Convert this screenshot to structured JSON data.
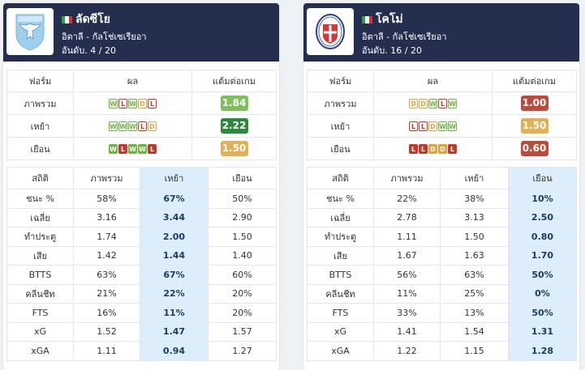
{
  "colors": {
    "header_bg": "#242f4f",
    "highlight_bg": "#dceefb",
    "win": "#6cb33f",
    "draw": "#d9a441",
    "loss": "#c0392b",
    "ppg_green_light": "#7fbf5a",
    "ppg_green_dark": "#2c8a3c",
    "ppg_yellow": "#e3b053",
    "ppg_red": "#bd4b3b"
  },
  "teams": [
    {
      "name": "ลัดซีโย",
      "league": "อิตาลี - กัลโช่เซเรียอา",
      "rank": "อันดับ. 4 / 20",
      "logo_icon": "lazio-eagle-crest-icon",
      "flag_icon": "italy-flag-icon",
      "form_headers": [
        "ฟอร์ม",
        "ผล",
        "แต้มต่อเกม"
      ],
      "form_rows": [
        {
          "label": "ภาพรวม",
          "results": [
            "W",
            "L",
            "W",
            "D",
            "L"
          ],
          "ppg": "1.84",
          "ppg_color": "#7fbf5a"
        },
        {
          "label": "เหย้า",
          "results": [
            "W",
            "W",
            "W",
            "L",
            "D"
          ],
          "ppg": "2.22",
          "ppg_color": "#2c8a3c"
        },
        {
          "label": "เยือน",
          "results": [
            "W",
            "L",
            "W",
            "W",
            "L"
          ],
          "ppg": "1.50",
          "ppg_color": "#e3b053"
        }
      ],
      "stats_headers": [
        "สถิติ",
        "ภาพรวม",
        "เหย้า",
        "เยือน"
      ],
      "highlight_col": 2,
      "stats_rows": [
        {
          "label": "ชนะ %",
          "overall": "58%",
          "home": "67%",
          "away": "50%"
        },
        {
          "label": "เฉลี่ย",
          "overall": "3.16",
          "home": "3.44",
          "away": "2.90"
        },
        {
          "label": "ทำประตู",
          "overall": "1.74",
          "home": "2.00",
          "away": "1.50"
        },
        {
          "label": "เสีย",
          "overall": "1.42",
          "home": "1.44",
          "away": "1.40"
        },
        {
          "label": "BTTS",
          "overall": "63%",
          "home": "67%",
          "away": "60%"
        },
        {
          "label": "คลีนชีท",
          "overall": "21%",
          "home": "22%",
          "away": "20%"
        },
        {
          "label": "FTS",
          "overall": "16%",
          "home": "11%",
          "away": "20%"
        },
        {
          "label": "xG",
          "overall": "1.52",
          "home": "1.47",
          "away": "1.57"
        },
        {
          "label": "xGA",
          "overall": "1.11",
          "home": "0.94",
          "away": "1.27"
        }
      ]
    },
    {
      "name": "โคโม่",
      "league": "อิตาลี - กัลโช่เซเรียอา",
      "rank": "อันดับ. 16 / 20",
      "logo_icon": "como-1907-crest-icon",
      "flag_icon": "italy-flag-icon",
      "form_headers": [
        "ฟอร์ม",
        "ผล",
        "แต้มต่อเกม"
      ],
      "form_rows": [
        {
          "label": "ภาพรวม",
          "results": [
            "D",
            "D",
            "W",
            "L",
            "W"
          ],
          "ppg": "1.00",
          "ppg_color": "#bd4b3b"
        },
        {
          "label": "เหย้า",
          "results": [
            "L",
            "L",
            "D",
            "W",
            "W"
          ],
          "ppg": "1.50",
          "ppg_color": "#e3b053"
        },
        {
          "label": "เยือน",
          "results": [
            "L",
            "L",
            "D",
            "D",
            "L"
          ],
          "ppg": "0.60",
          "ppg_color": "#bd4b3b"
        }
      ],
      "stats_headers": [
        "สถิติ",
        "ภาพรวม",
        "เหย้า",
        "เยือน"
      ],
      "highlight_col": 3,
      "stats_rows": [
        {
          "label": "ชนะ %",
          "overall": "22%",
          "home": "38%",
          "away": "10%"
        },
        {
          "label": "เฉลี่ย",
          "overall": "2.78",
          "home": "3.13",
          "away": "2.50"
        },
        {
          "label": "ทำประตู",
          "overall": "1.11",
          "home": "1.50",
          "away": "0.80"
        },
        {
          "label": "เสีย",
          "overall": "1.67",
          "home": "1.63",
          "away": "1.70"
        },
        {
          "label": "BTTS",
          "overall": "56%",
          "home": "63%",
          "away": "50%"
        },
        {
          "label": "คลีนชีท",
          "overall": "11%",
          "home": "25%",
          "away": "0%"
        },
        {
          "label": "FTS",
          "overall": "33%",
          "home": "13%",
          "away": "50%"
        },
        {
          "label": "xG",
          "overall": "1.41",
          "home": "1.54",
          "away": "1.31"
        },
        {
          "label": "xGA",
          "overall": "1.22",
          "home": "1.15",
          "away": "1.28"
        }
      ]
    }
  ]
}
